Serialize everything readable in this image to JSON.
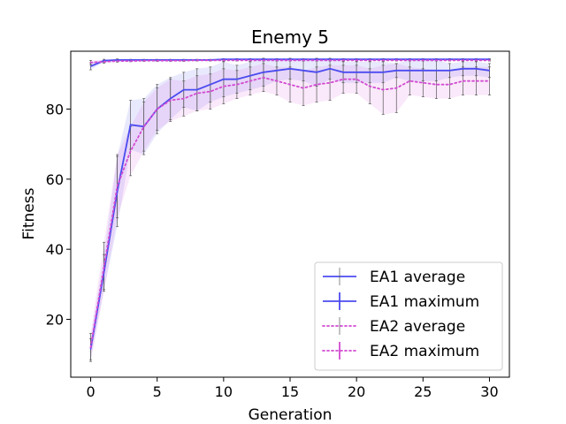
{
  "chart_data": {
    "type": "line",
    "title": "Enemy 5",
    "xlabel": "Generation",
    "ylabel": "Fitness",
    "xlim": [
      -1.5,
      31.5
    ],
    "ylim": [
      3.5,
      96.5
    ],
    "xticks": [
      0,
      5,
      10,
      15,
      20,
      25,
      30
    ],
    "yticks": [
      20,
      40,
      60,
      80
    ],
    "grid": false,
    "legend_position": "lower-right",
    "x": [
      0,
      1,
      2,
      3,
      4,
      5,
      6,
      7,
      8,
      9,
      10,
      11,
      12,
      13,
      14,
      15,
      16,
      17,
      18,
      19,
      20,
      21,
      22,
      23,
      24,
      25,
      26,
      27,
      28,
      29,
      30
    ],
    "series": [
      {
        "name": "EA1 average",
        "style": "solid",
        "color": "#4b4bf0",
        "values": [
          11.5,
          33.5,
          56.5,
          75.5,
          75,
          80,
          83,
          85.5,
          85.5,
          87,
          88.5,
          88.5,
          89.5,
          90.5,
          91,
          91.5,
          91,
          90.5,
          91.5,
          90.5,
          90.5,
          90.5,
          90.5,
          91,
          91,
          91,
          91,
          91,
          91.5,
          91.5,
          91
        ],
        "std": [
          3,
          5,
          10,
          7,
          8,
          7,
          6,
          5,
          6,
          5,
          5,
          4,
          4,
          4,
          3,
          3,
          3,
          4,
          3,
          3,
          3,
          3,
          3,
          2,
          3,
          3,
          3,
          2,
          2,
          2,
          2
        ]
      },
      {
        "name": "EA1 maximum",
        "style": "solid",
        "color": "#4b4bf0",
        "values": [
          92.2,
          93.8,
          94,
          94,
          94,
          94,
          94,
          94,
          94,
          94,
          94.2,
          94.2,
          94.2,
          94.2,
          94.2,
          94.2,
          94.2,
          94.2,
          94.2,
          94.2,
          94.2,
          94.2,
          94.2,
          94.2,
          94.2,
          94.2,
          94.2,
          94.2,
          94.2,
          94.2,
          94.2
        ],
        "std": [
          1,
          0.4,
          0.3,
          0.2,
          0.2,
          0.2,
          0.2,
          0.2,
          0.2,
          0.2,
          0.2,
          0.2,
          0.2,
          0.2,
          0.2,
          0.2,
          0.2,
          0.2,
          0.2,
          0.2,
          0.2,
          0.2,
          0.2,
          0.2,
          0.2,
          0.2,
          0.2,
          0.2,
          0.2,
          0.2,
          0.2
        ]
      },
      {
        "name": "EA2 average",
        "style": "dotted",
        "color": "#d24bd2",
        "values": [
          12,
          35,
          58,
          68,
          75,
          80,
          82.5,
          83,
          84.5,
          85,
          86.5,
          87,
          88,
          89,
          88,
          87,
          86,
          87,
          87.5,
          88.5,
          88.5,
          86.5,
          85.5,
          86,
          88,
          87.5,
          87,
          87,
          88,
          88,
          88
        ],
        "std": [
          4,
          7,
          9,
          7,
          7,
          6,
          6,
          5,
          5,
          5,
          5,
          4,
          4,
          4,
          4,
          5,
          5,
          5,
          5,
          4,
          4,
          5,
          7,
          7,
          4,
          4,
          4,
          4,
          4,
          4,
          4
        ]
      },
      {
        "name": "EA2 maximum",
        "style": "dotted",
        "color": "#d24bd2",
        "values": [
          93.3,
          93.5,
          93.7,
          93.7,
          93.8,
          93.8,
          93.8,
          93.8,
          93.9,
          93.9,
          93.9,
          93.9,
          93.9,
          93.9,
          93.9,
          93.9,
          93.9,
          93.9,
          93.9,
          93.9,
          93.9,
          93.9,
          93.9,
          93.9,
          93.9,
          93.9,
          93.9,
          93.9,
          93.9,
          93.9,
          93.9
        ],
        "std": [
          0.6,
          0.4,
          0.3,
          0.2,
          0.2,
          0.2,
          0.2,
          0.2,
          0.2,
          0.2,
          0.2,
          0.2,
          0.2,
          0.2,
          0.2,
          0.2,
          0.2,
          0.2,
          0.2,
          0.2,
          0.2,
          0.2,
          0.2,
          0.2,
          0.2,
          0.2,
          0.2,
          0.2,
          0.2,
          0.2,
          0.2
        ]
      }
    ]
  }
}
